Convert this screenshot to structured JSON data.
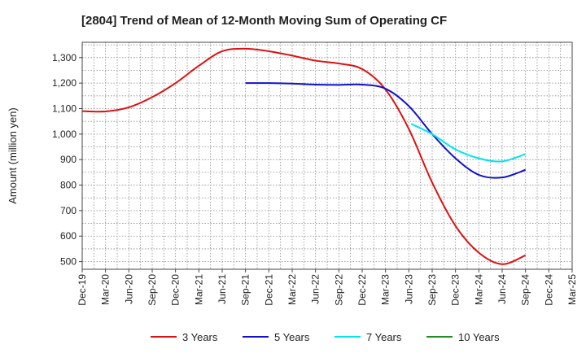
{
  "chart_data": {
    "type": "line",
    "title": "[2804]  Trend of Mean of 12-Month Moving Sum of Operating CF",
    "xlabel": "",
    "ylabel": "Amount (million yen)",
    "ylim": [
      470,
      1360
    ],
    "yticks": [
      500,
      600,
      700,
      800,
      900,
      1000,
      1100,
      1200,
      1300
    ],
    "ytick_labels": [
      "500",
      "600",
      "700",
      "800",
      "900",
      "1,000",
      "1,100",
      "1,200",
      "1,300"
    ],
    "x_tick_labels": [
      "Dec-19",
      "Mar-20",
      "Jun-20",
      "Sep-20",
      "Dec-20",
      "Mar-21",
      "Jun-21",
      "Sep-21",
      "Dec-21",
      "Mar-22",
      "Jun-22",
      "Sep-22",
      "Dec-22",
      "Mar-23",
      "Jun-23",
      "Sep-23",
      "Dec-23",
      "Mar-24",
      "Jun-24",
      "Sep-24",
      "Dec-24",
      "Mar-25"
    ],
    "grid": true,
    "legend_position": "bottom",
    "series": [
      {
        "name": "3 Years",
        "color": "#dd1111",
        "points": [
          [
            0,
            1090
          ],
          [
            1,
            1089
          ],
          [
            2,
            1105
          ],
          [
            3,
            1145
          ],
          [
            4,
            1200
          ],
          [
            5,
            1268
          ],
          [
            6,
            1325
          ],
          [
            7,
            1335
          ],
          [
            8,
            1325
          ],
          [
            9,
            1308
          ],
          [
            10,
            1288
          ],
          [
            11,
            1277
          ],
          [
            12,
            1255
          ],
          [
            13,
            1175
          ],
          [
            14,
            1020
          ],
          [
            15,
            810
          ],
          [
            16,
            640
          ],
          [
            17,
            535
          ],
          [
            18,
            490
          ],
          [
            19,
            525
          ]
        ]
      },
      {
        "name": "5 Years",
        "color": "#1111cc",
        "points": [
          [
            7,
            1200
          ],
          [
            8,
            1200
          ],
          [
            9,
            1198
          ],
          [
            10,
            1194
          ],
          [
            11,
            1193
          ],
          [
            12,
            1194
          ],
          [
            13,
            1178
          ],
          [
            14,
            1110
          ],
          [
            15,
            1000
          ],
          [
            16,
            905
          ],
          [
            17,
            840
          ],
          [
            18,
            830
          ],
          [
            19,
            860
          ]
        ]
      },
      {
        "name": "7 Years",
        "color": "#00e5ee",
        "points": [
          [
            14.1,
            1040
          ],
          [
            15,
            1000
          ],
          [
            16,
            940
          ],
          [
            17,
            905
          ],
          [
            18,
            893
          ],
          [
            19,
            922
          ]
        ]
      },
      {
        "name": "10 Years",
        "color": "#228b22",
        "points": []
      }
    ]
  }
}
